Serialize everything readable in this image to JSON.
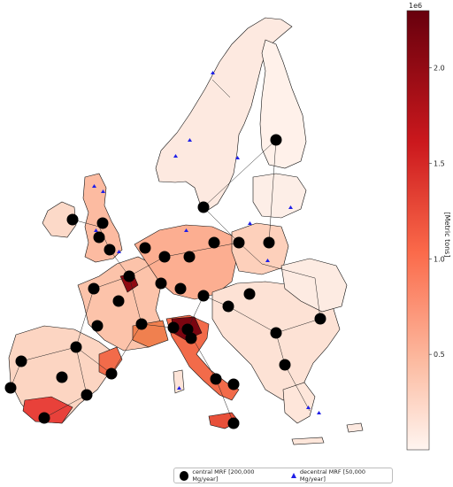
{
  "colorbar": {
    "multiplier": "1e6",
    "label": "[Metric tons]",
    "ticks": [
      "0.5",
      "1.0",
      "1.5",
      "2.0"
    ],
    "tick_values": [
      0.5,
      1.0,
      1.5,
      2.0
    ],
    "min": 0,
    "max": 2.3,
    "color_low": "#fff5f0",
    "color_high": "#67000d"
  },
  "legend": {
    "central_label": "central MRF [200,000 Mg/year]",
    "decentral_label": "decentral MRF [50,000 Mg/year]",
    "central_color": "#000000",
    "decentral_color": "#1f1fe8"
  }
}
